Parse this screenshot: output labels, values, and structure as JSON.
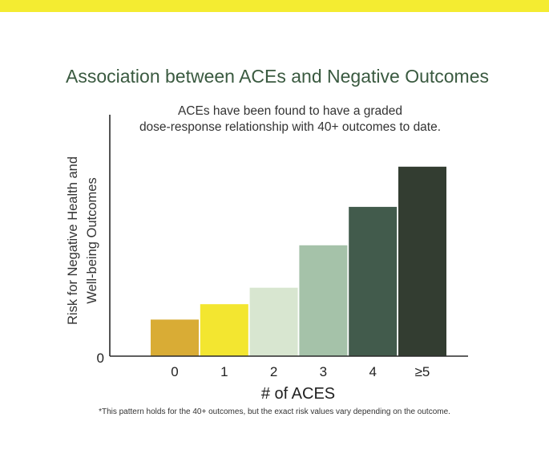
{
  "title": "Association between ACEs and Negative Outcomes",
  "footnote": "*This pattern holds for the 40+ outcomes, but the exact risk values vary depending on the outcome.",
  "colors": {
    "top_bar": "#f4ec31",
    "title": "#3a5a40",
    "bars": [
      "#d9ac35",
      "#f3e630",
      "#d8e6d0",
      "#a5c2a9",
      "#425b4c",
      "#333d31"
    ]
  },
  "chart_data": {
    "type": "bar",
    "subtitle_lines": [
      "ACEs have been found to have a graded",
      "dose-response relationship with 40+ outcomes to date."
    ],
    "ylabel_lines": [
      "Risk for Negative Health and",
      "Well-being Outcomes"
    ],
    "xlabel": "# of ACES",
    "categories": [
      "0",
      "1",
      "2",
      "3",
      "4",
      "≥5"
    ],
    "values": [
      1.0,
      1.42,
      1.87,
      3.03,
      4.08,
      5.18
    ],
    "ylim": [
      0,
      6.6
    ],
    "y_tick_labels": [
      "0"
    ],
    "grid": false,
    "legend": "none"
  }
}
